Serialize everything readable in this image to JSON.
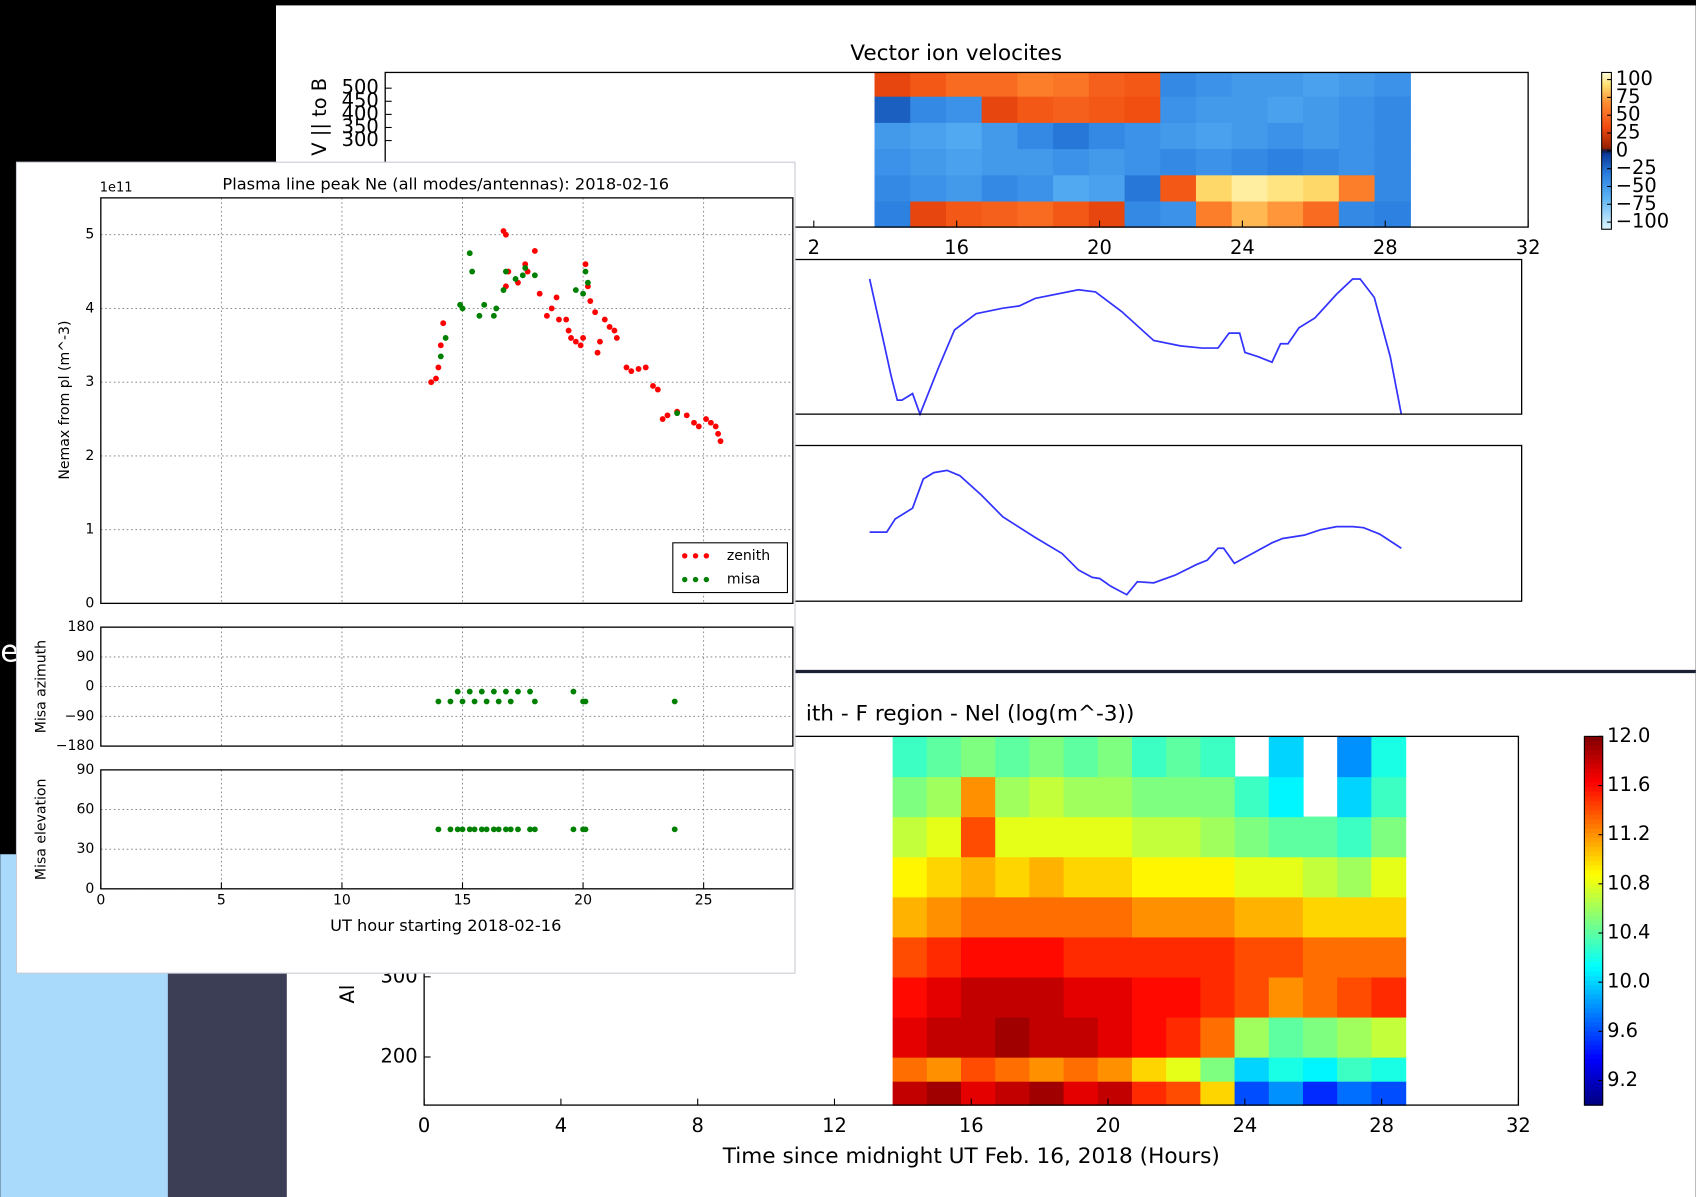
{
  "desktop": {
    "fragment_text": "e)"
  },
  "chart_data": [
    {
      "type": "heatmap",
      "title": "Vector ion velocites",
      "ylabel": "V || to B",
      "colormap": "orange-blue",
      "xlim": [
        0,
        32
      ],
      "ylim": [
        -30,
        560
      ],
      "xticks": [
        {
          "value": 12,
          "label": "2"
        },
        16,
        20,
        24,
        28,
        32
      ],
      "yticks": [
        300,
        350,
        400,
        450,
        500
      ],
      "clim": [
        -110,
        110
      ],
      "cticks": [
        100,
        75,
        50,
        25,
        0,
        {
          "value": -25,
          "label": "−25"
        },
        {
          "value": -50,
          "label": "−50"
        },
        {
          "value": -75,
          "label": "−75"
        },
        {
          "value": -100,
          "label": "−100"
        }
      ],
      "x_edges": [
        13.7,
        14.7,
        15.7,
        16.7,
        17.7,
        18.7,
        19.7,
        20.7,
        21.7,
        22.7,
        23.7,
        24.7,
        25.7,
        26.7,
        27.7,
        28.7
      ],
      "y_edges": [
        -30,
        70,
        170,
        270,
        370,
        470,
        560
      ],
      "z": [
        [
          -35,
          30,
          40,
          45,
          50,
          40,
          30,
          -40,
          -45,
          60,
          80,
          70,
          50,
          -40,
          -35
        ],
        [
          -40,
          -45,
          -50,
          -40,
          -45,
          -60,
          -55,
          -30,
          40,
          90,
          100,
          95,
          90,
          60,
          -40
        ],
        [
          -45,
          -50,
          -55,
          -50,
          -50,
          -45,
          -50,
          -45,
          -40,
          -45,
          -40,
          -35,
          -40,
          -45,
          -40
        ],
        [
          -50,
          -55,
          -60,
          -50,
          -40,
          -30,
          -40,
          -45,
          -50,
          -55,
          -50,
          -45,
          -50,
          -45,
          -40
        ],
        [
          -20,
          -40,
          -45,
          30,
          40,
          45,
          40,
          35,
          -45,
          -50,
          -50,
          -55,
          -50,
          -45,
          -40
        ],
        [
          30,
          40,
          50,
          50,
          60,
          55,
          45,
          40,
          -40,
          -45,
          -50,
          -50,
          -55,
          -50,
          -45
        ]
      ]
    },
    {
      "type": "line",
      "color": "#3333ff",
      "xlim": [
        0,
        32
      ],
      "ylim": [
        0,
        100
      ],
      "x": [
        13.64,
        14.06,
        14.24,
        14.42,
        14.55,
        14.85,
        15.06,
        15.58,
        16.03,
        16.64,
        17.39,
        17.85,
        18.3,
        19.52,
        20,
        20.73,
        21.64,
        22.39,
        23,
        23.45,
        23.76,
        24.06,
        24.21,
        24.58,
        24.97,
        25.21,
        25.42,
        25.73,
        26.18,
        26.79,
        27.24,
        27.45,
        27.85,
        28.3,
        28.61
      ],
      "values": [
        87.4,
        44.1,
        25.2,
        9.1,
        9.1,
        13.3,
        0,
        30.1,
        54.5,
        65,
        68.5,
        69.9,
        74.8,
        80.4,
        79,
        66.4,
        47.6,
        44.1,
        42.7,
        42.7,
        52.4,
        52.4,
        39.9,
        37.1,
        33.6,
        45.5,
        45.5,
        55.9,
        62.2,
        77.6,
        87.4,
        87.4,
        75.5,
        37.1,
        0
      ]
    },
    {
      "type": "line",
      "color": "#3333ff",
      "xlim": [
        0,
        32
      ],
      "ylim": [
        0,
        100
      ],
      "x": [
        13.64,
        14.12,
        14.36,
        14.85,
        15.15,
        15.45,
        15.82,
        16.18,
        16.79,
        17.39,
        18.3,
        19.06,
        19.52,
        19.91,
        20.12,
        20.42,
        20.88,
        21.18,
        21.64,
        22.24,
        22.85,
        23.15,
        23.45,
        23.61,
        23.91,
        24.36,
        24.97,
        25.27,
        25.88,
        26.33,
        26.79,
        27.24,
        27.55,
        28,
        28.61
      ],
      "values": [
        44.4,
        44.4,
        52.8,
        59.7,
        78.5,
        82.6,
        84,
        80.6,
        68.1,
        54.2,
        41,
        30.6,
        20.1,
        15.3,
        14.6,
        9.7,
        4.2,
        12.5,
        11.8,
        16.7,
        23.6,
        26.4,
        34,
        34,
        24.3,
        29.9,
        37.5,
        40.3,
        42.4,
        45.8,
        47.9,
        47.9,
        47.2,
        43.1,
        34
      ]
    },
    {
      "type": "heatmap",
      "title": "ith - F region - Nel (log(m^-3))",
      "xlabel": "Time since midnight UT Feb. 16, 2018 (Hours)",
      "ylabel": "Al",
      "colormap": "jet",
      "xlim": [
        0,
        32
      ],
      "ylim": [
        140,
        600
      ],
      "xticks": [
        0,
        4,
        8,
        12,
        16,
        20,
        24,
        28,
        32
      ],
      "yticks": [
        200,
        300
      ],
      "clim": [
        9,
        12
      ],
      "cticks": [
        {
          "value": 12,
          "label": "12.0"
        },
        11.6,
        11.2,
        10.8,
        10.4,
        {
          "value": 10,
          "label": "10.0"
        },
        9.6,
        9.2
      ],
      "x_edges": [
        13.7,
        14.7,
        15.7,
        16.7,
        17.7,
        18.7,
        19.7,
        20.7,
        21.7,
        22.7,
        23.7,
        24.7,
        25.7,
        26.7,
        27.7,
        28.7
      ],
      "y_edges": [
        140,
        170,
        200,
        250,
        300,
        350,
        400,
        450,
        500,
        550,
        600
      ],
      "z": [
        [
          11.8,
          11.9,
          11.7,
          11.8,
          11.9,
          11.7,
          11.8,
          11.5,
          11.4,
          11.0,
          9.6,
          9.8,
          9.5,
          9.7,
          9.6
        ],
        [
          11.3,
          11.2,
          11.4,
          11.3,
          11.2,
          11.3,
          11.2,
          11.0,
          10.8,
          10.5,
          10.0,
          10.2,
          10.1,
          10.3,
          10.2
        ],
        [
          11.7,
          11.8,
          11.8,
          11.9,
          11.8,
          11.8,
          11.7,
          11.6,
          11.5,
          11.3,
          10.6,
          10.4,
          10.5,
          10.6,
          10.7
        ],
        [
          11.6,
          11.7,
          11.8,
          11.8,
          11.8,
          11.7,
          11.7,
          11.6,
          11.6,
          11.5,
          11.4,
          11.2,
          11.3,
          11.4,
          11.5
        ],
        [
          11.4,
          11.5,
          11.6,
          11.6,
          11.6,
          11.5,
          11.5,
          11.5,
          11.5,
          11.5,
          11.4,
          11.4,
          11.3,
          11.3,
          11.3
        ],
        [
          11.1,
          11.2,
          11.3,
          11.3,
          11.3,
          11.3,
          11.3,
          11.2,
          11.2,
          11.2,
          11.1,
          11.1,
          11.0,
          11.0,
          11.0
        ],
        [
          10.9,
          11.0,
          11.1,
          11.0,
          11.1,
          11.0,
          11.0,
          10.9,
          10.9,
          10.9,
          10.8,
          10.8,
          10.7,
          10.6,
          10.8
        ],
        [
          10.7,
          10.8,
          11.4,
          10.8,
          10.8,
          10.8,
          10.8,
          10.7,
          10.7,
          10.6,
          10.5,
          10.4,
          10.4,
          10.3,
          10.5
        ],
        [
          10.5,
          10.6,
          11.2,
          10.6,
          10.7,
          10.6,
          10.6,
          10.5,
          10.5,
          10.5,
          10.3,
          10.1,
          null,
          10.0,
          10.3
        ],
        [
          10.3,
          10.4,
          10.5,
          10.4,
          10.5,
          10.4,
          10.5,
          10.3,
          10.4,
          10.3,
          null,
          10.0,
          null,
          9.8,
          10.2
        ]
      ]
    },
    {
      "type": "scatter",
      "title": "Plasma line peak Ne (all modes/antennas): 2018-02-16",
      "offset_label": "1e11",
      "ylabel": "Nemax from pl (m^-3)",
      "xlim": [
        0,
        28.7
      ],
      "ylim": [
        0,
        5.5
      ],
      "yticks": [
        0,
        1,
        2,
        3,
        4,
        5
      ],
      "grid": true,
      "legend": "lower right",
      "series": [
        {
          "name": "zenith",
          "color": "#ff0000",
          "x": [
            13.7,
            13.9,
            14.0,
            14.1,
            14.2,
            16.7,
            16.8,
            16.9,
            16.8,
            17.3,
            17.6,
            18.0,
            17.7,
            18.2,
            18.5,
            18.7,
            18.9,
            19.0,
            19.3,
            19.4,
            19.5,
            19.7,
            19.9,
            20.0,
            20.1,
            20.2,
            20.3,
            20.5,
            20.6,
            20.7,
            20.9,
            21.1,
            21.3,
            21.4,
            21.8,
            22.0,
            22.3,
            22.6,
            22.9,
            23.1,
            23.3,
            23.5,
            23.9,
            24.3,
            24.6,
            24.8,
            25.1,
            25.3,
            25.5,
            25.6,
            25.7
          ],
          "values": [
            3.0,
            3.05,
            3.2,
            3.5,
            3.8,
            5.05,
            5.0,
            4.5,
            4.3,
            4.35,
            4.6,
            4.78,
            4.5,
            4.2,
            3.9,
            4.0,
            4.15,
            3.85,
            3.85,
            3.7,
            3.6,
            3.55,
            3.5,
            3.6,
            4.6,
            4.3,
            4.1,
            3.95,
            3.4,
            3.55,
            3.85,
            3.75,
            3.7,
            3.6,
            3.2,
            3.15,
            3.18,
            3.2,
            2.95,
            2.9,
            2.5,
            2.55,
            2.6,
            2.55,
            2.45,
            2.4,
            2.5,
            2.45,
            2.4,
            2.3,
            2.2
          ]
        },
        {
          "name": "misa",
          "color": "#008000",
          "x": [
            14.1,
            14.3,
            14.9,
            15.0,
            15.3,
            15.4,
            15.7,
            15.9,
            16.3,
            16.4,
            16.7,
            16.8,
            17.2,
            17.5,
            17.6,
            18.0,
            19.7,
            20.0,
            20.1,
            20.2,
            23.9
          ],
          "values": [
            3.35,
            3.6,
            4.05,
            4.0,
            4.75,
            4.5,
            3.9,
            4.05,
            3.9,
            4.0,
            4.25,
            4.5,
            4.4,
            4.45,
            4.55,
            4.45,
            4.25,
            4.2,
            4.5,
            4.35,
            2.58
          ]
        }
      ]
    },
    {
      "type": "scatter",
      "ylabel": "Misa azimuth",
      "xlim": [
        0,
        28.7
      ],
      "ylim": [
        -180,
        180
      ],
      "yticks": [
        180,
        90,
        0,
        {
          "value": -90,
          "label": "−90"
        },
        {
          "value": -180,
          "label": "−180"
        }
      ],
      "grid": true,
      "series": [
        {
          "color": "#008000",
          "x": [
            14.0,
            14.5,
            14.8,
            15.0,
            15.3,
            15.5,
            15.8,
            16.0,
            16.3,
            16.5,
            16.8,
            17.0,
            17.3,
            17.8,
            18.0,
            19.6,
            20.0,
            20.1,
            23.8
          ],
          "values": [
            -45,
            -45,
            -15,
            -45,
            -15,
            -45,
            -15,
            -45,
            -15,
            -45,
            -15,
            -45,
            -15,
            -15,
            -45,
            -15,
            -45,
            -45,
            -45
          ]
        }
      ]
    },
    {
      "type": "scatter",
      "ylabel": "Misa elevation",
      "xlabel": "UT hour starting 2018-02-16",
      "xlim": [
        0,
        28.7
      ],
      "ylim": [
        0,
        90
      ],
      "xticks": [
        0,
        5,
        10,
        15,
        20,
        25
      ],
      "yticks": [
        90,
        60,
        30,
        0
      ],
      "grid": true,
      "series": [
        {
          "color": "#008000",
          "x": [
            14.0,
            14.5,
            14.8,
            15.0,
            15.3,
            15.5,
            15.8,
            16.0,
            16.3,
            16.5,
            16.8,
            17.0,
            17.3,
            17.8,
            18.0,
            19.6,
            20.0,
            20.1,
            23.8
          ],
          "values": [
            45,
            45,
            45,
            45,
            45,
            45,
            45,
            45,
            45,
            45,
            45,
            45,
            45,
            45,
            45,
            45,
            45,
            45,
            45
          ]
        }
      ]
    }
  ]
}
